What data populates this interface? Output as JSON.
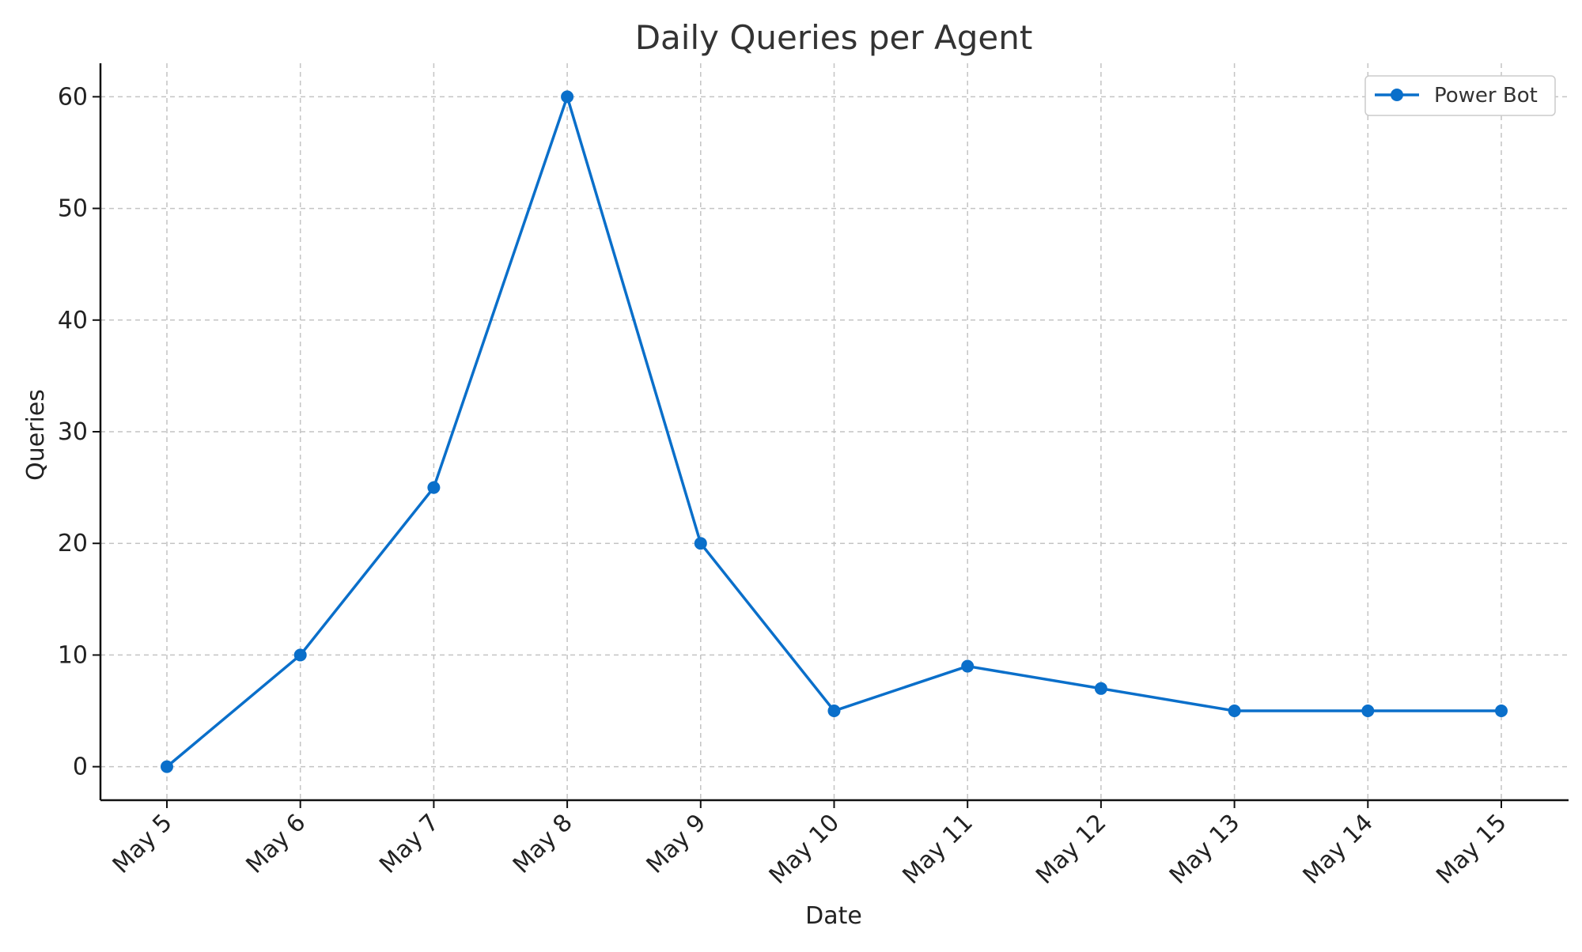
{
  "chart_data": {
    "type": "line",
    "title": "Daily Queries per Agent",
    "xlabel": "Date",
    "ylabel": "Queries",
    "categories": [
      "May 5",
      "May 6",
      "May 7",
      "May 8",
      "May 9",
      "May 10",
      "May 11",
      "May 12",
      "May 13",
      "May 14",
      "May 15"
    ],
    "series": [
      {
        "name": "Power Bot",
        "values": [
          0,
          10,
          25,
          60,
          20,
          5,
          9,
          7,
          5,
          5,
          5
        ],
        "color": "#0a6fca"
      }
    ],
    "ylim": [
      -3,
      63
    ],
    "yticks": [
      0,
      10,
      20,
      30,
      40,
      50,
      60
    ],
    "grid": true,
    "legend_position": "top-right",
    "marker": "circle"
  }
}
